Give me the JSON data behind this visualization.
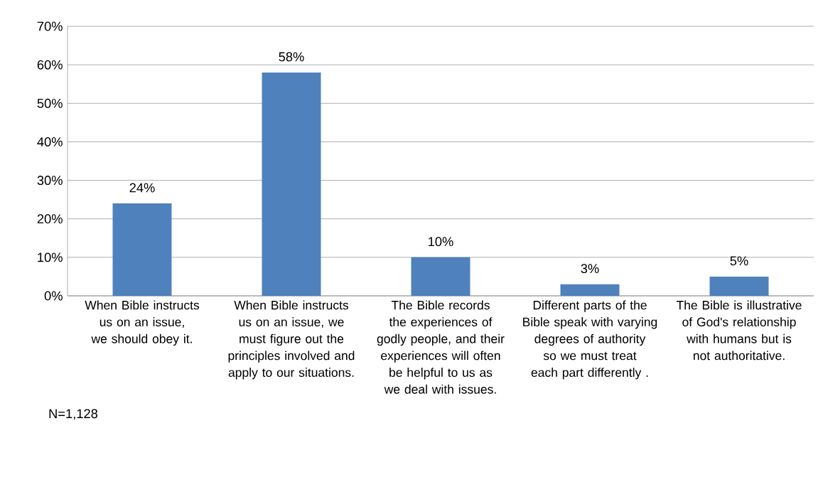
{
  "chart_data": {
    "type": "bar",
    "categories": [
      "When Bible instructs us on an issue, we should obey it.",
      "When Bible instructs us on an issue, we must figure out the principles involved and apply to our situations.",
      "The Bible records the experiences of godly people, and their experiences will often be helpful to us as we deal with issues.",
      "Different parts of the Bible speak with varying degrees of authority so we must treat each part differently .",
      "The Bible is illustrative of God's relationship with humans but is not authoritative."
    ],
    "values": [
      24,
      58,
      10,
      3,
      5
    ],
    "value_labels": [
      "24%",
      "58%",
      "10%",
      "3%",
      "5%"
    ],
    "color": "#4f81bd",
    "ylim": [
      0,
      70
    ],
    "yticks": [
      {
        "value": 0,
        "label": "0%"
      },
      {
        "value": 10,
        "label": "10%"
      },
      {
        "value": 20,
        "label": "20%"
      },
      {
        "value": 30,
        "label": "30%"
      },
      {
        "value": 40,
        "label": "40%"
      },
      {
        "value": 50,
        "label": "50%"
      },
      {
        "value": 60,
        "label": "60%"
      },
      {
        "value": 70,
        "label": "70%"
      }
    ],
    "grid": "y",
    "annotations": [
      "N=1,128"
    ]
  }
}
